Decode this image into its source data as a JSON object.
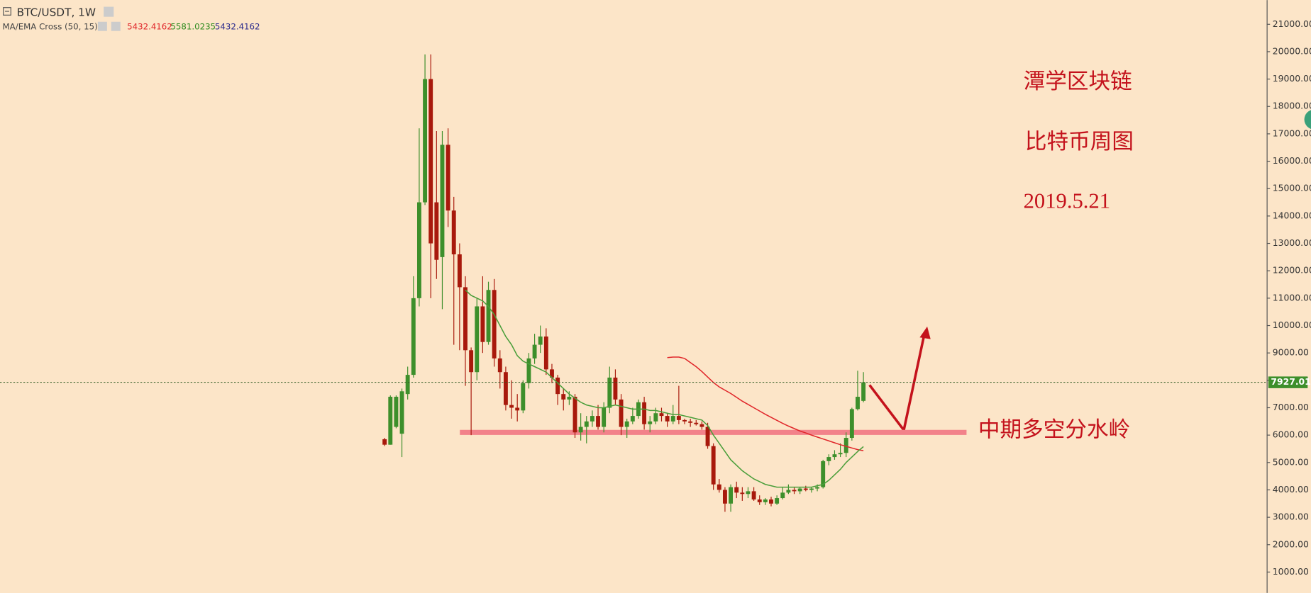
{
  "chart_data": {
    "type": "candlestick",
    "title": "BTC/USDT, 1W",
    "indicator": {
      "name": "MA/EMA Cross (50, 15)",
      "values": [
        5432.4162,
        5581.0235,
        5432.4162
      ],
      "colors": [
        "#e0262a",
        "#2e8b1e",
        "#2b2b8c"
      ]
    },
    "annotations": [
      "潭学区块链",
      "比特币周图",
      "2019.5.21",
      "中期多空分水岭"
    ],
    "up_color": "#3d8f2b",
    "down_color": "#a8190c",
    "open": [
      5850,
      5650,
      6300,
      6050,
      7500,
      8200,
      11000,
      14500,
      19000,
      14500,
      12500,
      16600,
      14200,
      12600,
      11400,
      9100,
      8300,
      10700,
      9400,
      11300,
      8800,
      8300,
      7100,
      7000,
      6900,
      7900,
      8800,
      9300,
      9600,
      8400,
      8100,
      7500,
      7300,
      7400,
      6100,
      6300,
      6500,
      6700,
      6300,
      7000,
      8100,
      7300,
      6300,
      6500,
      6700,
      7200,
      6400,
      6500,
      6800,
      6700,
      6500,
      6700,
      6550,
      6500,
      6450,
      6400,
      6300,
      5600,
      4200,
      4000,
      3500,
      4100,
      3900,
      3850,
      3950,
      3650,
      3550,
      3650,
      3500,
      3700,
      3900,
      4000,
      3950,
      4050,
      4000,
      4050,
      4100,
      5050,
      5200,
      5300,
      5350,
      5900,
      6950,
      7250
    ],
    "high": [
      5900,
      7450,
      7450,
      7700,
      8500,
      11800,
      17200,
      19900,
      19900,
      17100,
      17100,
      17200,
      14700,
      13000,
      11800,
      9200,
      11000,
      11800,
      11600,
      11700,
      9100,
      8500,
      8000,
      7500,
      8000,
      9000,
      9700,
      10000,
      9900,
      8600,
      8200,
      7700,
      7600,
      7500,
      6800,
      6700,
      6900,
      7100,
      7200,
      8500,
      8400,
      7500,
      6600,
      7000,
      7300,
      7400,
      6700,
      7000,
      7000,
      6800,
      7100,
      7800,
      6600,
      6600,
      6550,
      6500,
      6450,
      5700,
      4400,
      4100,
      4200,
      4300,
      4100,
      4100,
      4100,
      3800,
      3700,
      3750,
      3800,
      4100,
      4200,
      4100,
      4100,
      4150,
      4100,
      4200,
      5100,
      5300,
      5450,
      5700,
      6100,
      7000,
      8350,
      8300
    ],
    "low": [
      5600,
      5650,
      6250,
      5200,
      7300,
      8100,
      10700,
      14400,
      11000,
      11700,
      10600,
      13600,
      9300,
      9100,
      7800,
      6000,
      8000,
      9000,
      9300,
      8500,
      7700,
      6900,
      6600,
      6500,
      6800,
      7700,
      8600,
      9000,
      8200,
      7900,
      7100,
      6900,
      7100,
      5900,
      5800,
      5700,
      6300,
      6200,
      6100,
      6800,
      7100,
      6000,
      5900,
      6400,
      6600,
      6200,
      6100,
      6400,
      6500,
      6300,
      6400,
      6400,
      6400,
      6300,
      6350,
      6200,
      5500,
      4000,
      3900,
      3200,
      3200,
      3700,
      3600,
      3700,
      3600,
      3450,
      3450,
      3400,
      3450,
      3650,
      3850,
      3850,
      3850,
      3950,
      3900,
      3950,
      4050,
      4900,
      5100,
      5200,
      5200,
      5800,
      6900,
      7200
    ],
    "close": [
      5650,
      7400,
      7400,
      7600,
      8200,
      11000,
      14500,
      19000,
      13000,
      12400,
      16600,
      14200,
      12600,
      11400,
      9100,
      8300,
      10700,
      9400,
      11300,
      8800,
      8300,
      7100,
      7000,
      6900,
      7900,
      8800,
      9300,
      9600,
      8400,
      8100,
      7500,
      7300,
      7400,
      6100,
      6300,
      6500,
      6700,
      6300,
      7000,
      8100,
      7300,
      6300,
      6500,
      6700,
      7200,
      6400,
      6500,
      6800,
      6700,
      6500,
      6700,
      6550,
      6500,
      6450,
      6400,
      6300,
      5600,
      4200,
      4000,
      3500,
      4100,
      3900,
      3850,
      3950,
      3650,
      3550,
      3650,
      3500,
      3700,
      3900,
      4000,
      3950,
      4050,
      4000,
      4050,
      4100,
      5050,
      5200,
      5300,
      5350,
      5900,
      6950,
      7400,
      7927.01
    ],
    "lines": [
      {
        "color": "#e0262a",
        "values": [
          null,
          null,
          null,
          null,
          null,
          null,
          null,
          null,
          null,
          null,
          null,
          null,
          null,
          null,
          null,
          null,
          null,
          null,
          null,
          null,
          null,
          null,
          null,
          null,
          null,
          null,
          null,
          null,
          null,
          null,
          null,
          null,
          null,
          null,
          null,
          null,
          null,
          null,
          null,
          null,
          null,
          null,
          null,
          null,
          null,
          null,
          null,
          null,
          null,
          8830,
          8850,
          8850,
          8800,
          8650,
          8500,
          8320,
          8120,
          7920,
          7760,
          7640,
          7520,
          7380,
          7240,
          7120,
          7000,
          6880,
          6760,
          6650,
          6540,
          6430,
          6330,
          6240,
          6150,
          6080,
          6000,
          5930,
          5860,
          5790,
          5720,
          5650,
          5590,
          5530,
          5470,
          5432
        ]
      },
      {
        "color": "#4a9e3a",
        "values": [
          null,
          null,
          null,
          null,
          null,
          null,
          null,
          null,
          null,
          null,
          null,
          null,
          null,
          null,
          11300,
          11100,
          11000,
          10900,
          10700,
          10400,
          10000,
          9600,
          9300,
          8900,
          8700,
          8600,
          8500,
          8400,
          8300,
          8100,
          7900,
          7700,
          7500,
          7350,
          7200,
          7100,
          7050,
          7000,
          7000,
          7050,
          7100,
          7050,
          7000,
          6950,
          6950,
          6950,
          6900,
          6900,
          6850,
          6800,
          6750,
          6750,
          6700,
          6650,
          6600,
          6550,
          6350,
          6000,
          5700,
          5400,
          5100,
          4900,
          4700,
          4550,
          4400,
          4300,
          4200,
          4150,
          4100,
          4100,
          4100,
          4100,
          4100,
          4100,
          4100,
          4150,
          4200,
          4350,
          4550,
          4750,
          5000,
          5200,
          5400,
          5580
        ]
      }
    ],
    "support_level": 6100,
    "support_color": "#f2828a",
    "last_price": {
      "value": 7927.01,
      "label": "7927.01"
    },
    "ylim": [
      238,
      21884
    ],
    "yticks": [
      {
        "value": 1000,
        "label": "1000.00"
      },
      {
        "value": 2000,
        "label": "2000.00"
      },
      {
        "value": 3000,
        "label": "3000.00"
      },
      {
        "value": 4000,
        "label": "4000.00"
      },
      {
        "value": 5000,
        "label": "5000.00"
      },
      {
        "value": 6000,
        "label": "6000.00"
      },
      {
        "value": 7000,
        "label": "7000.00"
      },
      {
        "value": 8000,
        "label": "8000.00"
      },
      {
        "value": 9000,
        "label": "9000.00"
      },
      {
        "value": 10000,
        "label": "10000.00"
      },
      {
        "value": 11000,
        "label": "11000.00"
      },
      {
        "value": 12000,
        "label": "12000.00"
      },
      {
        "value": 13000,
        "label": "13000.00"
      },
      {
        "value": 14000,
        "label": "14000.00"
      },
      {
        "value": 15000,
        "label": "15000.00"
      },
      {
        "value": 16000,
        "label": "16000.00"
      },
      {
        "value": 17000,
        "label": "17000.00"
      },
      {
        "value": 18000,
        "label": "18000.00"
      },
      {
        "value": 19000,
        "label": "19000.00"
      },
      {
        "value": 20000,
        "label": "20000.00"
      },
      {
        "value": 21000,
        "label": "21000.00"
      }
    ],
    "grid": false
  }
}
